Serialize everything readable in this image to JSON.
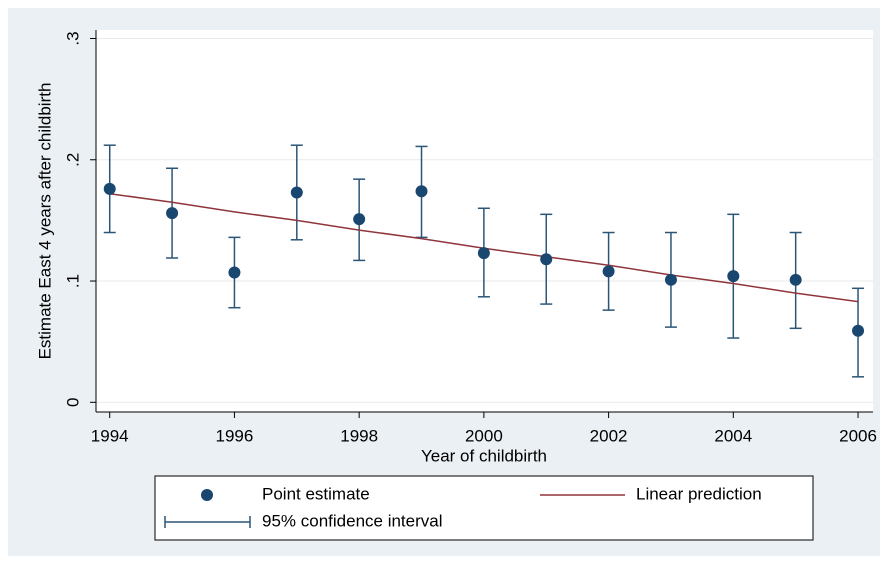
{
  "chart_data": {
    "type": "scatter",
    "xlabel": "Year of childbirth",
    "ylabel": "Estimate East 4 years after childbirth",
    "x": [
      1994,
      1995,
      1996,
      1997,
      1998,
      1999,
      2000,
      2001,
      2002,
      2003,
      2004,
      2005,
      2006
    ],
    "series": [
      {
        "name": "Point estimate",
        "type": "scatter",
        "color": "#1a476f",
        "values": [
          0.176,
          0.156,
          0.107,
          0.173,
          0.151,
          0.174,
          0.123,
          0.118,
          0.108,
          0.101,
          0.104,
          0.101,
          0.059
        ]
      },
      {
        "name": "Linear prediction",
        "type": "line",
        "color": "#90353b",
        "values": [
          0.172,
          0.165,
          0.157,
          0.15,
          0.142,
          0.135,
          0.127,
          0.12,
          0.113,
          0.105,
          0.098,
          0.09,
          0.083
        ]
      },
      {
        "name": "95% confidence interval",
        "type": "errorbar",
        "color": "#2b5577",
        "low": [
          0.14,
          0.119,
          0.078,
          0.134,
          0.117,
          0.136,
          0.087,
          0.081,
          0.076,
          0.062,
          0.053,
          0.061,
          0.021
        ],
        "high": [
          0.212,
          0.193,
          0.136,
          0.212,
          0.184,
          0.211,
          0.16,
          0.155,
          0.14,
          0.14,
          0.155,
          0.14,
          0.094
        ]
      }
    ],
    "xlim": [
      1993.78,
      2006.24
    ],
    "ylim": [
      -0.008,
      0.307
    ],
    "xticks": [
      1994,
      1996,
      1998,
      2000,
      2002,
      2004,
      2006
    ],
    "yticks": [
      {
        "value": 0,
        "label": "0"
      },
      {
        "value": 0.1,
        "label": ".1"
      },
      {
        "value": 0.2,
        "label": ".2"
      },
      {
        "value": 0.3,
        "label": ".3"
      }
    ],
    "grid": true,
    "legend": "bottom"
  }
}
